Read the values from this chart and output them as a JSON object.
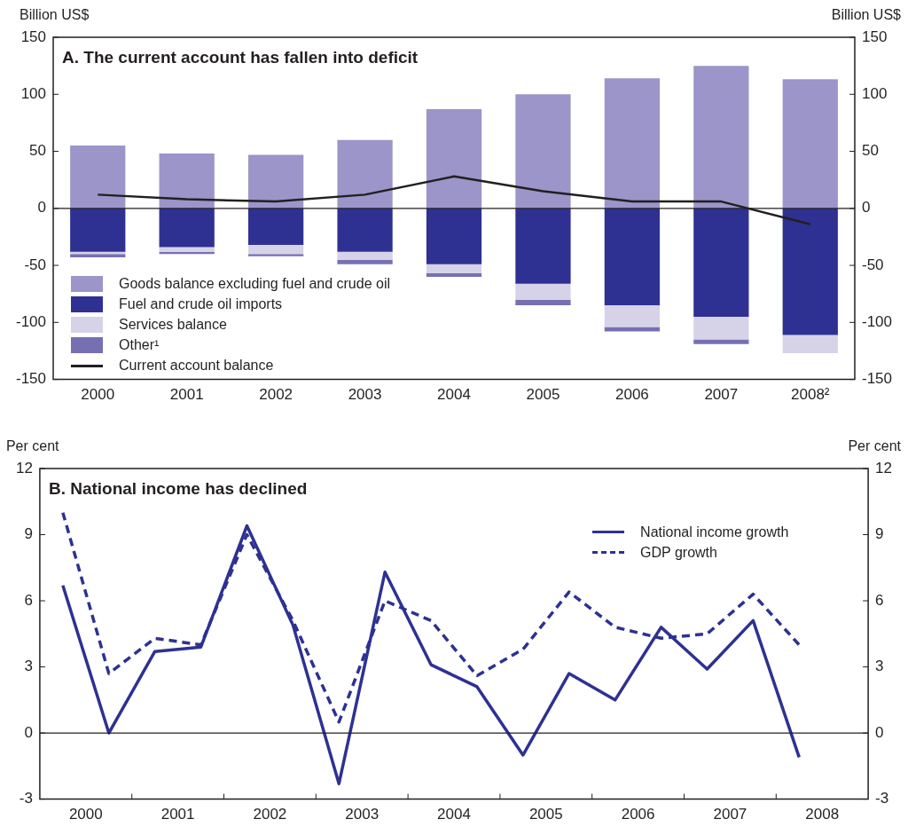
{
  "chart_data": [
    {
      "type": "bar",
      "title": "A. The current account has fallen into deficit",
      "ylabel": "Billion US$",
      "y2label": "Billion US$",
      "categories": [
        "2000",
        "2001",
        "2002",
        "2003",
        "2004",
        "2005",
        "2006",
        "2007",
        "2008²"
      ],
      "stacked": true,
      "series": [
        {
          "name": "Goods balance excluding fuel and crude oil",
          "color": "#9b95c9",
          "values": [
            55,
            48,
            47,
            60,
            87,
            100,
            114,
            125,
            112
          ]
        },
        {
          "name": "Fuel and crude oil imports",
          "color": "#2e3192",
          "values": [
            -38,
            -34,
            -32,
            -38,
            -49,
            -66,
            -85,
            -95,
            -111
          ]
        },
        {
          "name": "Services balance",
          "color": "#d6d2e8",
          "values": [
            -2,
            -4,
            -8,
            -7,
            -8,
            -14,
            -19,
            -20,
            -16
          ]
        },
        {
          "name": "Other¹",
          "color": "#7670b3",
          "values": [
            -3,
            -2,
            -2,
            -4,
            -3,
            -5,
            -4,
            -4,
            1
          ]
        },
        {
          "name": "Current account balance",
          "type": "line",
          "color": "#231f20",
          "values": [
            12,
            8,
            6,
            12,
            28,
            15,
            6,
            6,
            -14
          ]
        }
      ],
      "ylim": [
        -150,
        150
      ],
      "yticks": [
        -150,
        -100,
        -50,
        0,
        50,
        100,
        150
      ],
      "y2lim": [
        -150,
        150
      ],
      "y2ticks": [
        -150,
        -100,
        -50,
        0,
        50,
        100,
        150
      ],
      "ref_lines": [
        {
          "axis": "y",
          "value": 0
        }
      ],
      "legend": "bottom left",
      "grid": false,
      "marker": "none"
    },
    {
      "type": "line",
      "title": "B. National income has declined",
      "ylabel": "Per cent",
      "y2label": "Per cent",
      "x": [
        2000.25,
        2000.75,
        2001.25,
        2001.75,
        2002.25,
        2002.75,
        2003.25,
        2003.75,
        2004.25,
        2004.75,
        2005.25,
        2005.75,
        2006.25,
        2006.75,
        2007.25,
        2007.75,
        2008.25
      ],
      "series": [
        {
          "name": "National income growth",
          "color": "#2e3192",
          "line_style": "solid",
          "values": [
            6.7,
            0.0,
            3.7,
            3.9,
            9.4,
            4.9,
            -2.3,
            7.3,
            3.1,
            2.1,
            -1.0,
            2.7,
            1.5,
            4.8,
            2.9,
            5.1,
            -1.1
          ]
        },
        {
          "name": "GDP growth",
          "color": "#2e3192",
          "line_style": "dashed",
          "values": [
            10.0,
            2.7,
            4.3,
            4.0,
            9.0,
            5.1,
            0.5,
            6.0,
            5.1,
            2.6,
            3.8,
            6.4,
            4.8,
            4.3,
            4.5,
            6.3,
            4.0
          ]
        }
      ],
      "xlim": [
        2000,
        2009
      ],
      "xticks": [
        {
          "value": 2000.5,
          "label": "2000"
        },
        {
          "value": 2001,
          "label": null
        },
        {
          "value": 2001.5,
          "label": "2001"
        },
        {
          "value": 2002,
          "label": null
        },
        {
          "value": 2002.5,
          "label": "2002"
        },
        {
          "value": 2003,
          "label": null
        },
        {
          "value": 2003.5,
          "label": "2003"
        },
        {
          "value": 2004,
          "label": null
        },
        {
          "value": 2004.5,
          "label": "2004"
        },
        {
          "value": 2005,
          "label": null
        },
        {
          "value": 2005.5,
          "label": "2005"
        },
        {
          "value": 2006,
          "label": null
        },
        {
          "value": 2006.5,
          "label": "2006"
        },
        {
          "value": 2007,
          "label": null
        },
        {
          "value": 2007.5,
          "label": "2007"
        },
        {
          "value": 2008,
          "label": null
        },
        {
          "value": 2008.5,
          "label": "2008"
        }
      ],
      "ylim": [
        -3,
        12
      ],
      "yticks": [
        -3,
        0,
        3,
        6,
        9,
        12
      ],
      "y2lim": [
        -3,
        12
      ],
      "y2ticks": [
        -3,
        0,
        3,
        6,
        9,
        12
      ],
      "ref_lines": [
        {
          "axis": "y",
          "value": 0
        }
      ],
      "legend": "top right",
      "grid": false,
      "marker": "none"
    }
  ]
}
